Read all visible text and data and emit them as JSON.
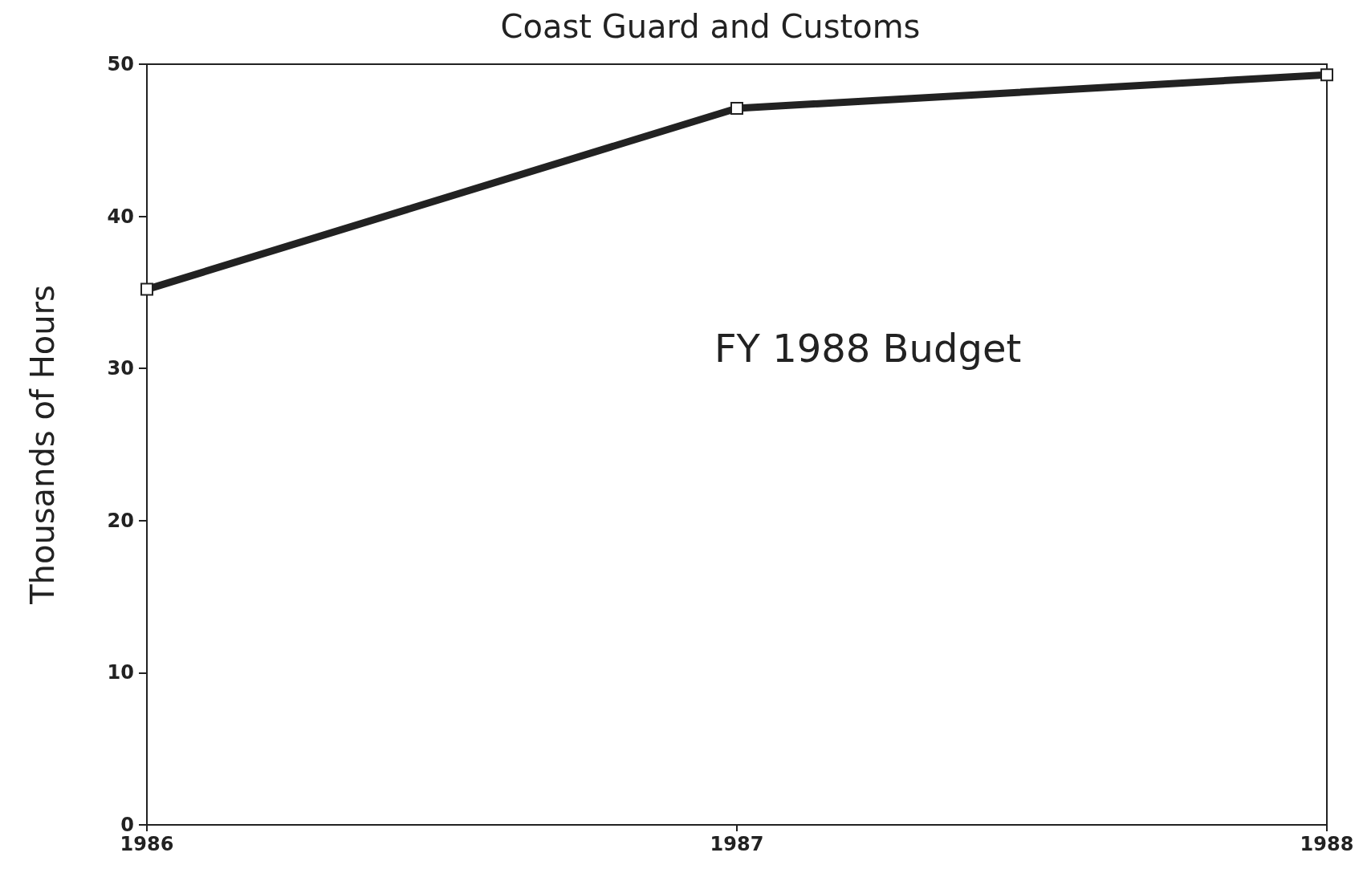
{
  "chart_data": {
    "type": "line",
    "title": "Coast Guard and Customs",
    "ylabel": "Thousands of Hours",
    "x": [
      1986,
      1987,
      1988
    ],
    "series": [
      {
        "color": "#222222",
        "values": [
          35.2,
          47.1,
          49.3
        ]
      }
    ],
    "xlim": [
      1986,
      1988
    ],
    "xticks": [
      1986,
      1987,
      1988
    ],
    "ylim": [
      0,
      50
    ],
    "yticks": [
      0,
      10,
      20,
      30,
      40,
      50
    ],
    "annotations": [
      "FY 1988 Budget"
    ],
    "marker": "square",
    "line_style": "solid",
    "grid": false
  }
}
